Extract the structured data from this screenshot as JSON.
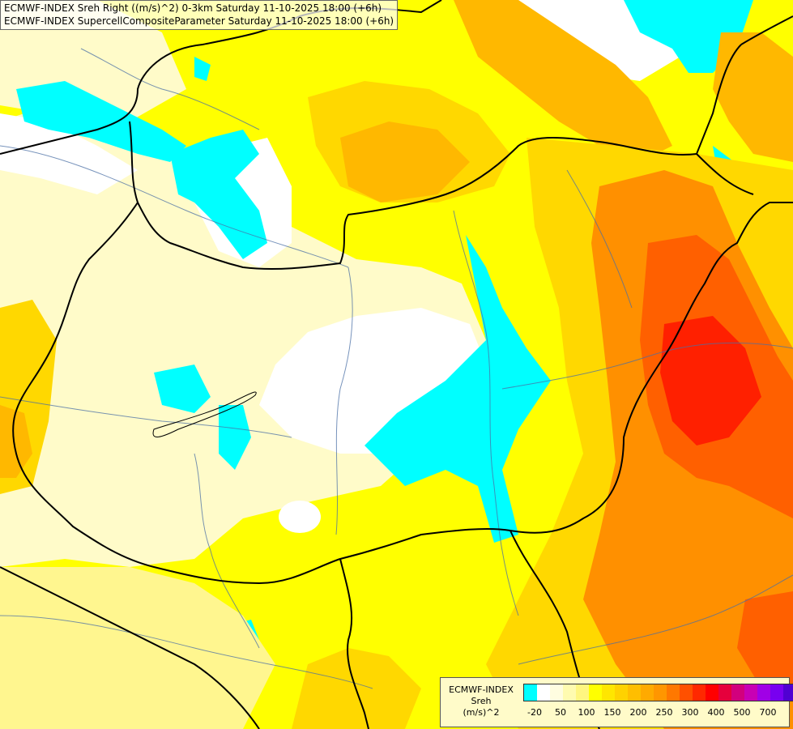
{
  "title": {
    "line1": "ECMWF-INDEX Sreh Right ((m/s)^2) 0-3km Saturday 11-10-2025 18:00 (+6h)",
    "line2": "ECMWF-INDEX SupercellCompositeParameter Saturday 11-10-2025 18:00 (+6h)"
  },
  "legend": {
    "line1": "ECMWF-INDEX",
    "line2": "Sreh",
    "line3": "(m/s)^2",
    "colors": [
      "#00ffff",
      "#ffffff",
      "#fffde0",
      "#fffbb0",
      "#fff680",
      "#ffff00",
      "#ffe600",
      "#ffd200",
      "#ffbe00",
      "#ffaa00",
      "#ff9600",
      "#ff7800",
      "#ff5000",
      "#ff2800",
      "#ff0000",
      "#e6003c",
      "#d2007d",
      "#c800b4",
      "#a000e6",
      "#7800f0",
      "#5000d2",
      "#2800b4",
      "#000096"
    ],
    "ticks": [
      "-20",
      "50",
      "100",
      "150",
      "200",
      "250",
      "300",
      "400",
      "500",
      "700"
    ]
  },
  "map": {
    "palette": {
      "cyan": "#00ffff",
      "white": "#ffffff",
      "pale": "#fffbc9",
      "light_yellow": "#fff68f",
      "yellow": "#ffff00",
      "gold": "#ffd800",
      "amber": "#ffb800",
      "orange": "#ff9000",
      "dark_orange": "#ff6000",
      "red": "#ff2000"
    }
  }
}
